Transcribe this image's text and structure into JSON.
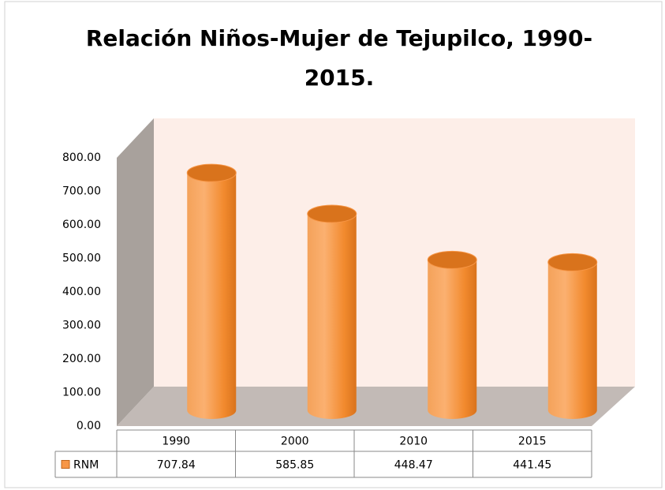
{
  "chart_data": {
    "type": "bar3d-cylinder",
    "title_lines": [
      "Relación Niños-Mujer de Tejupilco, 1990-",
      "2015."
    ],
    "categories": [
      "1990",
      "2000",
      "2010",
      "2015"
    ],
    "series": [
      {
        "name": "RNM",
        "color": "#f79646",
        "values": [
          707.84,
          585.85,
          448.47,
          441.45
        ]
      }
    ],
    "ylim": [
      0,
      800
    ],
    "yticks": [
      {
        "value": 0,
        "label": "0.00"
      },
      {
        "value": 100,
        "label": "100.00"
      },
      {
        "value": 200,
        "label": "200.00"
      },
      {
        "value": 300,
        "label": "300.00"
      },
      {
        "value": 400,
        "label": "400.00"
      },
      {
        "value": 500,
        "label": "500.00"
      },
      {
        "value": 600,
        "label": "600.00"
      },
      {
        "value": 700,
        "label": "700.00"
      },
      {
        "value": 800,
        "label": "800.00"
      }
    ],
    "data_table": true
  }
}
